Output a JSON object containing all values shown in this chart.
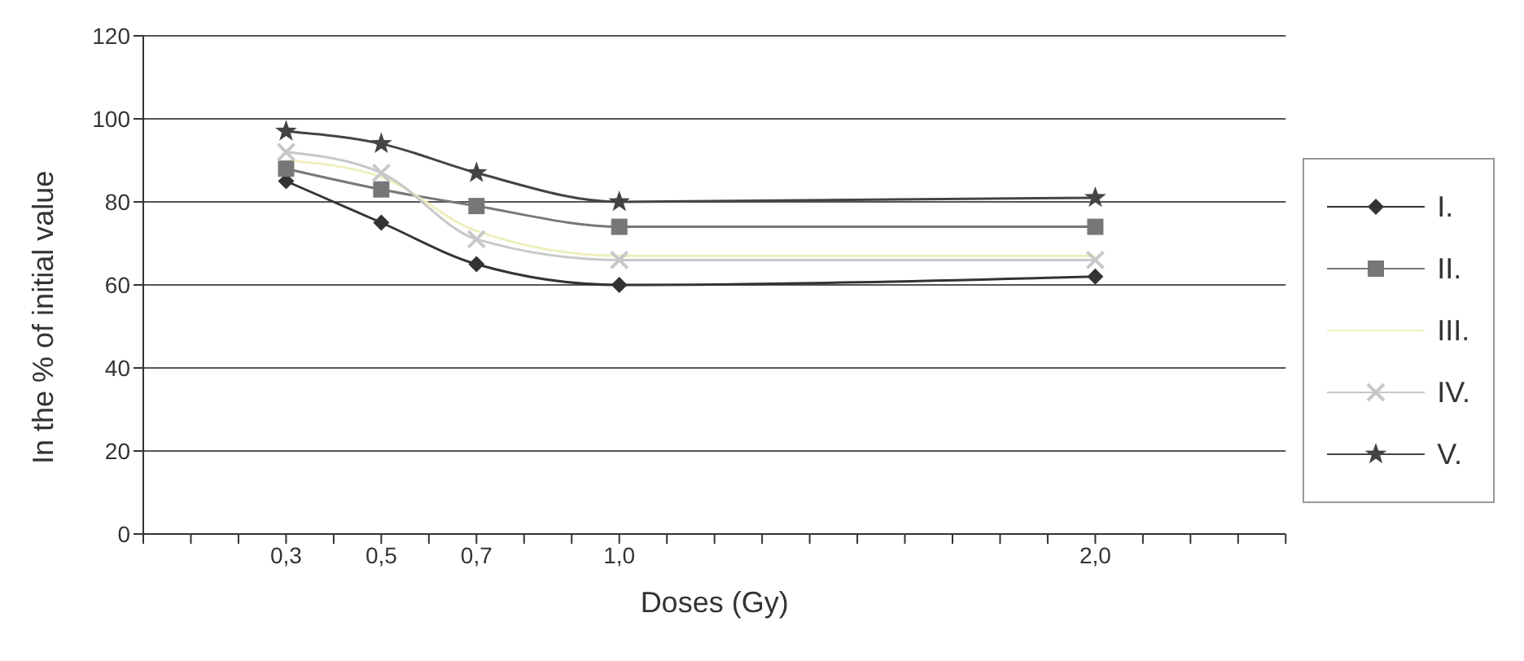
{
  "chart_data": {
    "type": "line",
    "xlabel": "Doses (Gy)",
    "ylabel": "In the % of initial value",
    "x": [
      0.3,
      0.5,
      0.7,
      1.0,
      2.0
    ],
    "series": [
      {
        "name": "I.",
        "color": "#333333",
        "marker": "diamond",
        "values": [
          85,
          75,
          65,
          60,
          62
        ]
      },
      {
        "name": "II.",
        "color": "#777777",
        "marker": "square",
        "values": [
          88,
          83,
          79,
          74,
          74
        ]
      },
      {
        "name": "III.",
        "color": "#eeeebb",
        "marker": "none",
        "values": [
          90,
          86,
          73,
          67,
          67
        ]
      },
      {
        "name": "IV.",
        "color": "#c8c8c8",
        "marker": "cross",
        "values": [
          92,
          87,
          71,
          66,
          66
        ]
      },
      {
        "name": "V.",
        "color": "#444444",
        "marker": "star",
        "values": [
          97,
          94,
          87,
          80,
          81
        ]
      }
    ],
    "xlim": [
      0,
      2.4
    ],
    "xticks": [
      {
        "value": 0,
        "label": null
      },
      {
        "value": 0.1,
        "label": null
      },
      {
        "value": 0.2,
        "label": null
      },
      {
        "value": 0.3,
        "label": "0,3"
      },
      {
        "value": 0.4,
        "label": null
      },
      {
        "value": 0.5,
        "label": "0,5"
      },
      {
        "value": 0.6,
        "label": null
      },
      {
        "value": 0.7,
        "label": "0,7"
      },
      {
        "value": 0.8,
        "label": null
      },
      {
        "value": 0.9,
        "label": null
      },
      {
        "value": 1.0,
        "label": "1,0"
      },
      {
        "value": 1.1,
        "label": null
      },
      {
        "value": 1.2,
        "label": null
      },
      {
        "value": 1.3,
        "label": null
      },
      {
        "value": 1.4,
        "label": null
      },
      {
        "value": 1.5,
        "label": null
      },
      {
        "value": 1.6,
        "label": null
      },
      {
        "value": 1.7,
        "label": null
      },
      {
        "value": 1.8,
        "label": null
      },
      {
        "value": 1.9,
        "label": null
      },
      {
        "value": 2.0,
        "label": "2,0"
      },
      {
        "value": 2.1,
        "label": null
      },
      {
        "value": 2.2,
        "label": null
      },
      {
        "value": 2.3,
        "label": null
      },
      {
        "value": 2.4,
        "label": null
      }
    ],
    "ylim": [
      0,
      120
    ],
    "yticks": [
      0,
      20,
      40,
      60,
      80,
      100,
      120
    ],
    "grid": "y",
    "legend": "right"
  }
}
